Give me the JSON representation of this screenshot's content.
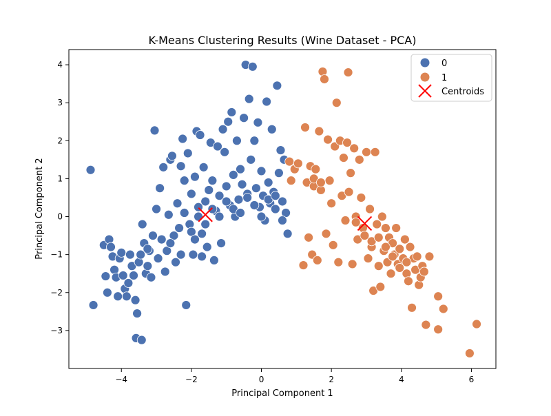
{
  "chart_data": {
    "type": "scatter",
    "title": "K-Means Clustering Results (Wine Dataset - PCA)",
    "xlabel": "Principal Component 1",
    "ylabel": "Principal Component 2",
    "xlim": [
      -5.5,
      6.7
    ],
    "ylim": [
      -4.0,
      4.4
    ],
    "xticks": [
      -4,
      -2,
      0,
      2,
      4,
      6
    ],
    "yticks": [
      -3,
      -2,
      -1,
      0,
      1,
      2,
      3,
      4
    ],
    "xtick_labels": [
      "−4",
      "−2",
      "0",
      "2",
      "4",
      "6"
    ],
    "ytick_labels": [
      "−3",
      "−2",
      "−1",
      "0",
      "1",
      "2",
      "3",
      "4"
    ],
    "grid": false,
    "legend_position": "top-right",
    "series": [
      {
        "name": "0",
        "color": "#4c72b0",
        "marker": "circle",
        "points": [
          [
            -4.88,
            1.23
          ],
          [
            -4.8,
            -2.33
          ],
          [
            -4.5,
            -0.75
          ],
          [
            -4.45,
            -1.57
          ],
          [
            -4.4,
            -2.0
          ],
          [
            -4.35,
            -0.6
          ],
          [
            -4.3,
            -0.8
          ],
          [
            -4.25,
            -1.05
          ],
          [
            -4.2,
            -1.4
          ],
          [
            -4.15,
            -1.6
          ],
          [
            -4.1,
            -2.1
          ],
          [
            -4.05,
            -1.1
          ],
          [
            -4.0,
            -0.95
          ],
          [
            -3.95,
            -1.55
          ],
          [
            -3.9,
            -1.9
          ],
          [
            -3.85,
            -2.1
          ],
          [
            -3.8,
            -1.75
          ],
          [
            -3.75,
            -1.0
          ],
          [
            -3.7,
            -1.3
          ],
          [
            -3.65,
            -1.55
          ],
          [
            -3.6,
            -2.2
          ],
          [
            -3.58,
            -3.2
          ],
          [
            -3.55,
            -2.55
          ],
          [
            -3.5,
            -1.2
          ],
          [
            -3.45,
            -1.0
          ],
          [
            -3.42,
            -3.25
          ],
          [
            -3.4,
            -0.2
          ],
          [
            -3.35,
            -0.7
          ],
          [
            -3.3,
            -1.5
          ],
          [
            -3.25,
            -1.3
          ],
          [
            -3.2,
            -0.9
          ],
          [
            -3.15,
            -1.6
          ],
          [
            -3.1,
            -0.5
          ],
          [
            -3.05,
            2.27
          ],
          [
            -3.0,
            0.2
          ],
          [
            -2.95,
            -1.1
          ],
          [
            -2.9,
            0.75
          ],
          [
            -2.85,
            -0.6
          ],
          [
            -2.8,
            1.3
          ],
          [
            -2.75,
            -1.45
          ],
          [
            -2.7,
            -0.9
          ],
          [
            -2.65,
            0.05
          ],
          [
            -2.6,
            1.5
          ],
          [
            -2.55,
            1.6
          ],
          [
            -2.5,
            -0.5
          ],
          [
            -2.45,
            -1.2
          ],
          [
            -2.4,
            0.35
          ],
          [
            -2.35,
            -0.3
          ],
          [
            -2.3,
            1.33
          ],
          [
            -2.25,
            2.05
          ],
          [
            -2.2,
            0.95
          ],
          [
            -2.15,
            -2.33
          ],
          [
            -2.1,
            1.67
          ],
          [
            -2.05,
            -0.2
          ],
          [
            -2.0,
            0.6
          ],
          [
            -1.95,
            -1.0
          ],
          [
            -1.9,
            1.05
          ],
          [
            -1.85,
            2.25
          ],
          [
            -1.8,
            0.25
          ],
          [
            -1.75,
            2.15
          ],
          [
            -1.7,
            -0.45
          ],
          [
            -1.65,
            1.3
          ],
          [
            -1.6,
            0.4
          ],
          [
            -1.55,
            -0.8
          ],
          [
            -1.5,
            0.7
          ],
          [
            -1.45,
            1.95
          ],
          [
            -1.4,
            0.95
          ],
          [
            -1.35,
            -1.15
          ],
          [
            -1.3,
            0.15
          ],
          [
            -1.25,
            1.85
          ],
          [
            -1.2,
            0.55
          ],
          [
            -1.15,
            -0.7
          ],
          [
            -1.1,
            2.3
          ],
          [
            -1.05,
            1.7
          ],
          [
            -1.0,
            0.8
          ],
          [
            -0.95,
            2.5
          ],
          [
            -0.9,
            0.3
          ],
          [
            -0.85,
            2.75
          ],
          [
            -0.8,
            1.1
          ],
          [
            -0.75,
            0.0
          ],
          [
            -0.7,
            2.0
          ],
          [
            -0.65,
            0.45
          ],
          [
            -0.6,
            1.25
          ],
          [
            -0.55,
            0.85
          ],
          [
            -0.5,
            2.6
          ],
          [
            -0.45,
            4.0
          ],
          [
            -0.4,
            0.6
          ],
          [
            -0.35,
            3.1
          ],
          [
            -0.3,
            1.5
          ],
          [
            -0.25,
            3.95
          ],
          [
            -0.2,
            2.0
          ],
          [
            -0.15,
            0.75
          ],
          [
            -0.1,
            2.48
          ],
          [
            -0.05,
            0.25
          ],
          [
            0.0,
            1.2
          ],
          [
            0.05,
            0.55
          ],
          [
            0.1,
            -0.1
          ],
          [
            0.15,
            3.03
          ],
          [
            0.2,
            0.9
          ],
          [
            0.25,
            0.35
          ],
          [
            0.3,
            2.3
          ],
          [
            0.35,
            0.65
          ],
          [
            0.4,
            0.2
          ],
          [
            0.45,
            3.45
          ],
          [
            0.5,
            1.15
          ],
          [
            0.55,
            1.75
          ],
          [
            0.6,
            0.4
          ],
          [
            0.65,
            1.5
          ],
          [
            0.7,
            0.1
          ],
          [
            0.75,
            -0.45
          ],
          [
            -2.2,
            0.1
          ],
          [
            -2.0,
            -0.4
          ],
          [
            -1.8,
            0.0
          ],
          [
            -1.6,
            -0.2
          ],
          [
            -1.4,
            0.2
          ],
          [
            -1.2,
            0.0
          ],
          [
            -1.0,
            0.4
          ],
          [
            -0.8,
            0.2
          ],
          [
            -0.6,
            0.1
          ],
          [
            -0.4,
            0.5
          ],
          [
            -0.2,
            0.3
          ],
          [
            0.0,
            0.0
          ],
          [
            0.2,
            0.45
          ],
          [
            0.4,
            0.55
          ],
          [
            0.6,
            -0.1
          ],
          [
            -2.6,
            -0.7
          ],
          [
            -2.3,
            -1.0
          ],
          [
            -1.9,
            -0.6
          ],
          [
            -1.7,
            -1.05
          ],
          [
            -3.25,
            -0.85
          ]
        ]
      },
      {
        "name": "1",
        "color": "#dd8452",
        "marker": "circle",
        "points": [
          [
            0.8,
            1.45
          ],
          [
            0.85,
            0.95
          ],
          [
            0.95,
            1.25
          ],
          [
            1.05,
            1.4
          ],
          [
            1.2,
            -1.28
          ],
          [
            1.25,
            2.35
          ],
          [
            1.3,
            0.9
          ],
          [
            1.35,
            -0.55
          ],
          [
            1.4,
            1.33
          ],
          [
            1.45,
            -1.0
          ],
          [
            1.5,
            0.8
          ],
          [
            1.55,
            1.25
          ],
          [
            1.6,
            -1.15
          ],
          [
            1.65,
            2.25
          ],
          [
            1.7,
            0.7
          ],
          [
            1.75,
            3.82
          ],
          [
            1.8,
            3.62
          ],
          [
            1.85,
            -0.45
          ],
          [
            1.9,
            2.03
          ],
          [
            1.95,
            0.95
          ],
          [
            2.0,
            0.35
          ],
          [
            2.05,
            -0.75
          ],
          [
            2.1,
            1.85
          ],
          [
            2.15,
            3.0
          ],
          [
            2.2,
            -1.2
          ],
          [
            2.25,
            2.0
          ],
          [
            2.3,
            0.55
          ],
          [
            2.35,
            1.55
          ],
          [
            2.4,
            -0.1
          ],
          [
            2.45,
            1.95
          ],
          [
            2.48,
            3.8
          ],
          [
            2.5,
            0.65
          ],
          [
            2.55,
            1.15
          ],
          [
            2.6,
            -1.25
          ],
          [
            2.65,
            1.8
          ],
          [
            2.7,
            0.0
          ],
          [
            2.75,
            -0.6
          ],
          [
            2.8,
            1.5
          ],
          [
            2.85,
            0.5
          ],
          [
            2.9,
            -0.3
          ],
          [
            3.0,
            1.7
          ],
          [
            3.05,
            -1.1
          ],
          [
            3.1,
            0.2
          ],
          [
            3.15,
            -0.8
          ],
          [
            3.2,
            -1.95
          ],
          [
            3.25,
            1.7
          ],
          [
            3.3,
            -0.2
          ],
          [
            3.35,
            -1.3
          ],
          [
            3.4,
            -1.85
          ],
          [
            3.45,
            0.0
          ],
          [
            3.5,
            -0.9
          ],
          [
            3.55,
            -0.3
          ],
          [
            3.6,
            -1.2
          ],
          [
            3.65,
            -0.55
          ],
          [
            3.7,
            -1.5
          ],
          [
            3.75,
            -0.7
          ],
          [
            3.8,
            -1.0
          ],
          [
            3.85,
            -0.3
          ],
          [
            3.9,
            -1.25
          ],
          [
            3.95,
            -0.85
          ],
          [
            4.05,
            -1.1
          ],
          [
            4.1,
            -0.6
          ],
          [
            4.15,
            -1.5
          ],
          [
            4.2,
            -1.7
          ],
          [
            4.25,
            -0.8
          ],
          [
            4.3,
            -2.4
          ],
          [
            4.35,
            -1.1
          ],
          [
            4.4,
            -1.4
          ],
          [
            4.45,
            -1.05
          ],
          [
            4.5,
            -1.8
          ],
          [
            4.55,
            -1.6
          ],
          [
            4.6,
            -1.3
          ],
          [
            4.65,
            -1.45
          ],
          [
            4.7,
            -2.85
          ],
          [
            4.8,
            -1.05
          ],
          [
            5.05,
            -2.1
          ],
          [
            5.05,
            -2.97
          ],
          [
            5.2,
            -2.43
          ],
          [
            5.95,
            -3.6
          ],
          [
            6.15,
            -2.83
          ],
          [
            2.7,
            -0.15
          ],
          [
            2.95,
            -0.5
          ],
          [
            3.15,
            -0.65
          ],
          [
            3.35,
            -0.55
          ],
          [
            3.55,
            -0.8
          ],
          [
            3.75,
            -1.05
          ],
          [
            3.95,
            -1.35
          ],
          [
            4.15,
            -1.2
          ],
          [
            1.5,
            1.0
          ],
          [
            1.7,
            0.9
          ]
        ]
      },
      {
        "name": "Centroids",
        "color": "#ff0000",
        "marker": "x",
        "points": [
          [
            -1.6,
            0.05
          ],
          [
            2.95,
            -0.18
          ]
        ]
      }
    ]
  }
}
